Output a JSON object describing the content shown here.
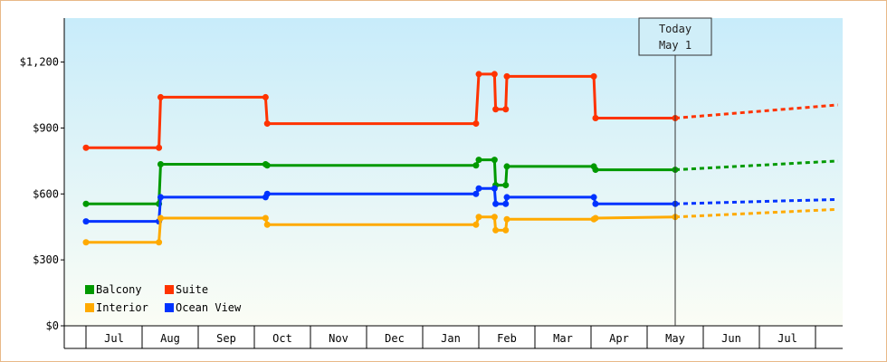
{
  "chart_data": {
    "type": "line",
    "title": "",
    "xlabel": "",
    "ylabel": "",
    "ylim": [
      0,
      1400
    ],
    "yticks": [
      0,
      300,
      600,
      900,
      1200
    ],
    "ytick_labels": [
      "$0",
      "$300",
      "$600",
      "$900",
      "$1,200"
    ],
    "x_month_labels": [
      "Jul",
      "Aug",
      "Sep",
      "Oct",
      "Nov",
      "Dec",
      "Jan",
      "Feb",
      "Mar",
      "Apr",
      "May",
      "Jun",
      "Jul"
    ],
    "grid": false,
    "legend_position": "bottom-left",
    "today_marker": {
      "line1": "Today",
      "line2": "May 1",
      "x": 10.5
    },
    "series": [
      {
        "name": "Suite",
        "color": "#ff3300",
        "values": [
          [
            0,
            810
          ],
          [
            1.3,
            810
          ],
          [
            1.33,
            1040
          ],
          [
            3.2,
            1040
          ],
          [
            3.23,
            920
          ],
          [
            6.95,
            920
          ],
          [
            7.0,
            1145
          ],
          [
            7.28,
            1145
          ],
          [
            7.3,
            985
          ],
          [
            7.48,
            985
          ],
          [
            7.5,
            1135
          ],
          [
            9.05,
            1135
          ],
          [
            9.08,
            945
          ],
          [
            10.5,
            945
          ]
        ],
        "forecast": [
          [
            10.5,
            945
          ],
          [
            13.4,
            1005
          ]
        ]
      },
      {
        "name": "Balcony",
        "color": "#009900",
        "values": [
          [
            0,
            555
          ],
          [
            1.3,
            555
          ],
          [
            1.33,
            735
          ],
          [
            3.2,
            735
          ],
          [
            3.23,
            730
          ],
          [
            6.95,
            730
          ],
          [
            7.0,
            755
          ],
          [
            7.28,
            755
          ],
          [
            7.3,
            640
          ],
          [
            7.48,
            640
          ],
          [
            7.5,
            725
          ],
          [
            9.05,
            725
          ],
          [
            9.08,
            710
          ],
          [
            10.5,
            710
          ]
        ],
        "forecast": [
          [
            10.5,
            710
          ],
          [
            13.4,
            750
          ]
        ]
      },
      {
        "name": "Ocean View",
        "color": "#0033ff",
        "values": [
          [
            0,
            475
          ],
          [
            1.3,
            475
          ],
          [
            1.33,
            585
          ],
          [
            3.2,
            585
          ],
          [
            3.23,
            600
          ],
          [
            6.95,
            600
          ],
          [
            7.0,
            625
          ],
          [
            7.28,
            625
          ],
          [
            7.3,
            555
          ],
          [
            7.48,
            555
          ],
          [
            7.5,
            585
          ],
          [
            9.05,
            585
          ],
          [
            9.08,
            555
          ],
          [
            10.5,
            555
          ]
        ],
        "forecast": [
          [
            10.5,
            555
          ],
          [
            13.4,
            575
          ]
        ]
      },
      {
        "name": "Interior",
        "color": "#ffaa00",
        "values": [
          [
            0,
            380
          ],
          [
            1.3,
            380
          ],
          [
            1.33,
            490
          ],
          [
            3.2,
            490
          ],
          [
            3.23,
            460
          ],
          [
            6.95,
            460
          ],
          [
            7.0,
            495
          ],
          [
            7.28,
            495
          ],
          [
            7.3,
            435
          ],
          [
            7.48,
            435
          ],
          [
            7.5,
            485
          ],
          [
            9.05,
            485
          ],
          [
            9.08,
            490
          ],
          [
            10.5,
            495
          ]
        ],
        "forecast": [
          [
            10.5,
            495
          ],
          [
            13.4,
            530
          ]
        ]
      }
    ],
    "legend": [
      {
        "label": "Balcony",
        "color": "#009900"
      },
      {
        "label": "Suite",
        "color": "#ff3300"
      },
      {
        "label": "Interior",
        "color": "#ffaa00"
      },
      {
        "label": "Ocean View",
        "color": "#0033ff"
      }
    ]
  }
}
